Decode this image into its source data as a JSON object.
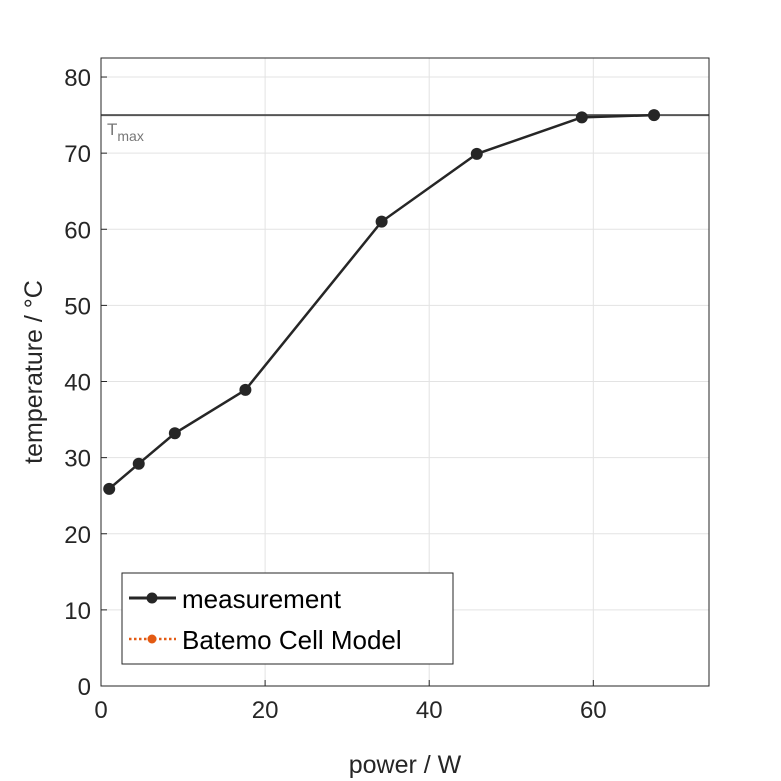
{
  "chart_data": {
    "type": "line",
    "title": "",
    "xlabel": "power / W",
    "ylabel": "temperature / °C",
    "xlim": [
      0,
      74.1
    ],
    "ylim": [
      0,
      82.5
    ],
    "xticks": [
      0,
      20,
      40,
      60
    ],
    "yticks": [
      0,
      10,
      20,
      30,
      40,
      50,
      60,
      70,
      80
    ],
    "grid": true,
    "legend_position": "bottom-left",
    "series": [
      {
        "name": "measurement",
        "color": "#262626",
        "style": "solid",
        "marker": "circle",
        "x": [
          1.0,
          4.6,
          9.0,
          17.6,
          34.2,
          45.8,
          58.6,
          67.4
        ],
        "y": [
          25.9,
          29.2,
          33.2,
          38.9,
          61.0,
          69.9,
          74.7,
          75.0
        ]
      },
      {
        "name": "Batemo Cell Model",
        "color": "#E35A12",
        "style": "dotted",
        "marker": "circle",
        "x": [],
        "y": []
      }
    ],
    "annotations": [
      {
        "type": "hline",
        "y": 75,
        "label": "T",
        "label_sub": "max",
        "color": "#555555"
      }
    ]
  }
}
